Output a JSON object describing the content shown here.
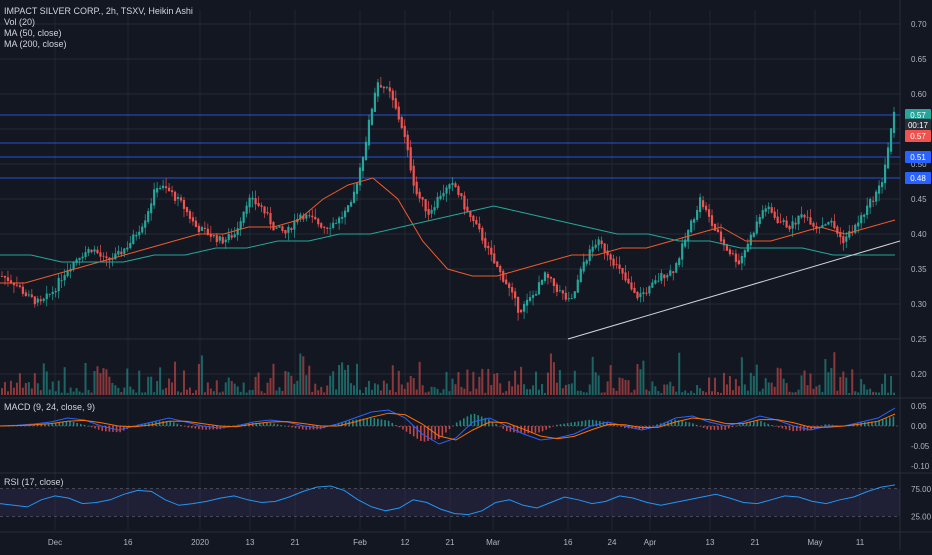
{
  "chart_data": {
    "type": "candlestick",
    "title": "IMPACT SILVER CORP., 2h, TSXV, Heikin Ashi",
    "ylim": [
      0.17,
      0.72
    ],
    "y_ticks": [
      "0.70",
      "0.65",
      "0.60",
      "0.55",
      "0.50",
      "0.45",
      "0.40",
      "0.35",
      "0.30",
      "0.25",
      "0.20"
    ],
    "x_ticks": [
      "Dec",
      "16",
      "2020",
      "13",
      "21",
      "Feb",
      "12",
      "21",
      "Mar",
      "16",
      "24",
      "Apr",
      "13",
      "21",
      "May",
      "11"
    ],
    "price_labels": [
      {
        "label": "0.57",
        "color": "#26a69a",
        "value": 0.57
      },
      {
        "label": "00:17",
        "color": "#2a2e39",
        "value": 0.556
      },
      {
        "label": "0.57",
        "color": "#ef5350",
        "value": 0.54
      },
      {
        "label": "0.51",
        "color": "#2962ff",
        "value": 0.51
      },
      {
        "label": "0.48",
        "color": "#2962ff",
        "value": 0.48
      }
    ],
    "horizontal_lines": [
      0.57,
      0.53,
      0.51,
      0.48,
      0.25
    ],
    "trendline": {
      "from_x": "Mar 16",
      "from_y": 0.25,
      "to_x": "end",
      "to_y": 0.39
    },
    "series": [
      {
        "name": "Price (Heikin Ashi)",
        "kind": "candles",
        "close_path": [
          0.34,
          0.33,
          0.31,
          0.3,
          0.32,
          0.35,
          0.37,
          0.38,
          0.36,
          0.37,
          0.39,
          0.42,
          0.47,
          0.46,
          0.44,
          0.41,
          0.4,
          0.39,
          0.4,
          0.45,
          0.44,
          0.41,
          0.4,
          0.43,
          0.42,
          0.41,
          0.42,
          0.44,
          0.52,
          0.62,
          0.6,
          0.55,
          0.46,
          0.43,
          0.46,
          0.47,
          0.43,
          0.4,
          0.36,
          0.33,
          0.29,
          0.31,
          0.34,
          0.32,
          0.3,
          0.36,
          0.39,
          0.37,
          0.34,
          0.31,
          0.32,
          0.34,
          0.35,
          0.4,
          0.45,
          0.41,
          0.38,
          0.36,
          0.4,
          0.44,
          0.42,
          0.41,
          0.43,
          0.41,
          0.42,
          0.39,
          0.41,
          0.44,
          0.47,
          0.57
        ]
      },
      {
        "name": "MA (50, close)",
        "color": "#f0592b",
        "values": [
          0.33,
          0.33,
          0.34,
          0.35,
          0.36,
          0.37,
          0.38,
          0.39,
          0.4,
          0.4,
          0.41,
          0.41,
          0.42,
          0.45,
          0.47,
          0.48,
          0.45,
          0.39,
          0.35,
          0.34,
          0.34,
          0.35,
          0.36,
          0.37,
          0.37,
          0.38,
          0.38,
          0.39,
          0.4,
          0.41,
          0.39,
          0.39,
          0.4,
          0.41,
          0.4,
          0.41,
          0.42
        ]
      },
      {
        "name": "MA (200, close)",
        "color": "#26a69a",
        "values": [
          0.37,
          0.37,
          0.36,
          0.36,
          0.36,
          0.37,
          0.37,
          0.38,
          0.38,
          0.39,
          0.39,
          0.4,
          0.4,
          0.41,
          0.42,
          0.43,
          0.44,
          0.43,
          0.42,
          0.41,
          0.4,
          0.4,
          0.39,
          0.39,
          0.38,
          0.38,
          0.38,
          0.37,
          0.37,
          0.37
        ]
      },
      {
        "name": "Vol (20)",
        "kind": "volume"
      }
    ],
    "legend": [
      "IMPACT SILVER CORP., 2h, TSXV, Heikin Ashi",
      "Vol (20)",
      "MA (50, close)",
      "MA (200, close)"
    ],
    "macd": {
      "label": "MACD (9, 24, close, 9)",
      "ticks": [
        "0.05",
        "0.00",
        "-0.05",
        "-0.10"
      ],
      "macd_line": [
        0.0,
        0.002,
        0.005,
        0.01,
        0.02,
        0.015,
        0.0,
        -0.01,
        0.0,
        0.01,
        0.02,
        0.01,
        0.0,
        -0.005,
        0.0,
        0.01,
        0.015,
        0.01,
        0.0,
        -0.005,
        0.005,
        0.02,
        0.035,
        0.04,
        0.02,
        -0.02,
        -0.045,
        -0.03,
        0.01,
        0.02,
        0.0,
        -0.02,
        -0.035,
        -0.03,
        -0.02,
        0.0,
        0.01,
        0.0,
        -0.01,
        0.0,
        0.02,
        0.025,
        0.01,
        0.0,
        0.01,
        0.025,
        0.015,
        0.0,
        -0.01,
        0.0,
        0.0,
        0.01,
        0.02,
        0.045
      ],
      "signal_line": [
        0.0,
        0.001,
        0.003,
        0.006,
        0.012,
        0.014,
        0.008,
        0.0,
        -0.002,
        0.003,
        0.012,
        0.012,
        0.006,
        0.0,
        -0.002,
        0.005,
        0.01,
        0.011,
        0.006,
        0.0,
        0.0,
        0.01,
        0.022,
        0.032,
        0.028,
        0.005,
        -0.025,
        -0.035,
        -0.01,
        0.01,
        0.008,
        -0.008,
        -0.025,
        -0.032,
        -0.026,
        -0.01,
        0.004,
        0.003,
        -0.004,
        -0.003,
        0.01,
        0.02,
        0.016,
        0.006,
        0.006,
        0.016,
        0.016,
        0.008,
        -0.003,
        -0.003,
        0.0,
        0.005,
        0.012,
        0.03
      ]
    },
    "rsi": {
      "label": "RSI (17, close)",
      "ticks": [
        "75.00",
        "25.00"
      ],
      "range": [
        0,
        100
      ],
      "values": [
        48,
        45,
        42,
        55,
        62,
        58,
        48,
        50,
        55,
        65,
        72,
        70,
        55,
        45,
        48,
        52,
        58,
        62,
        55,
        50,
        52,
        60,
        70,
        78,
        80,
        72,
        55,
        42,
        35,
        40,
        55,
        50,
        38,
        30,
        28,
        35,
        50,
        55,
        45,
        40,
        50,
        60,
        55,
        48,
        52,
        62,
        58,
        50,
        45,
        50,
        55,
        60,
        65,
        58,
        50,
        48,
        55,
        62,
        60,
        52,
        48,
        55,
        60,
        70,
        78,
        82
      ]
    },
    "colors": {
      "up": "#26a69a",
      "down": "#ef5350",
      "background": "#131722",
      "grid": "#363a45",
      "hline": "#2962ff",
      "trend": "#d1d4dc",
      "macd": "#2962ff",
      "signal": "#ff6d00",
      "rsi": "#2196f3"
    }
  }
}
